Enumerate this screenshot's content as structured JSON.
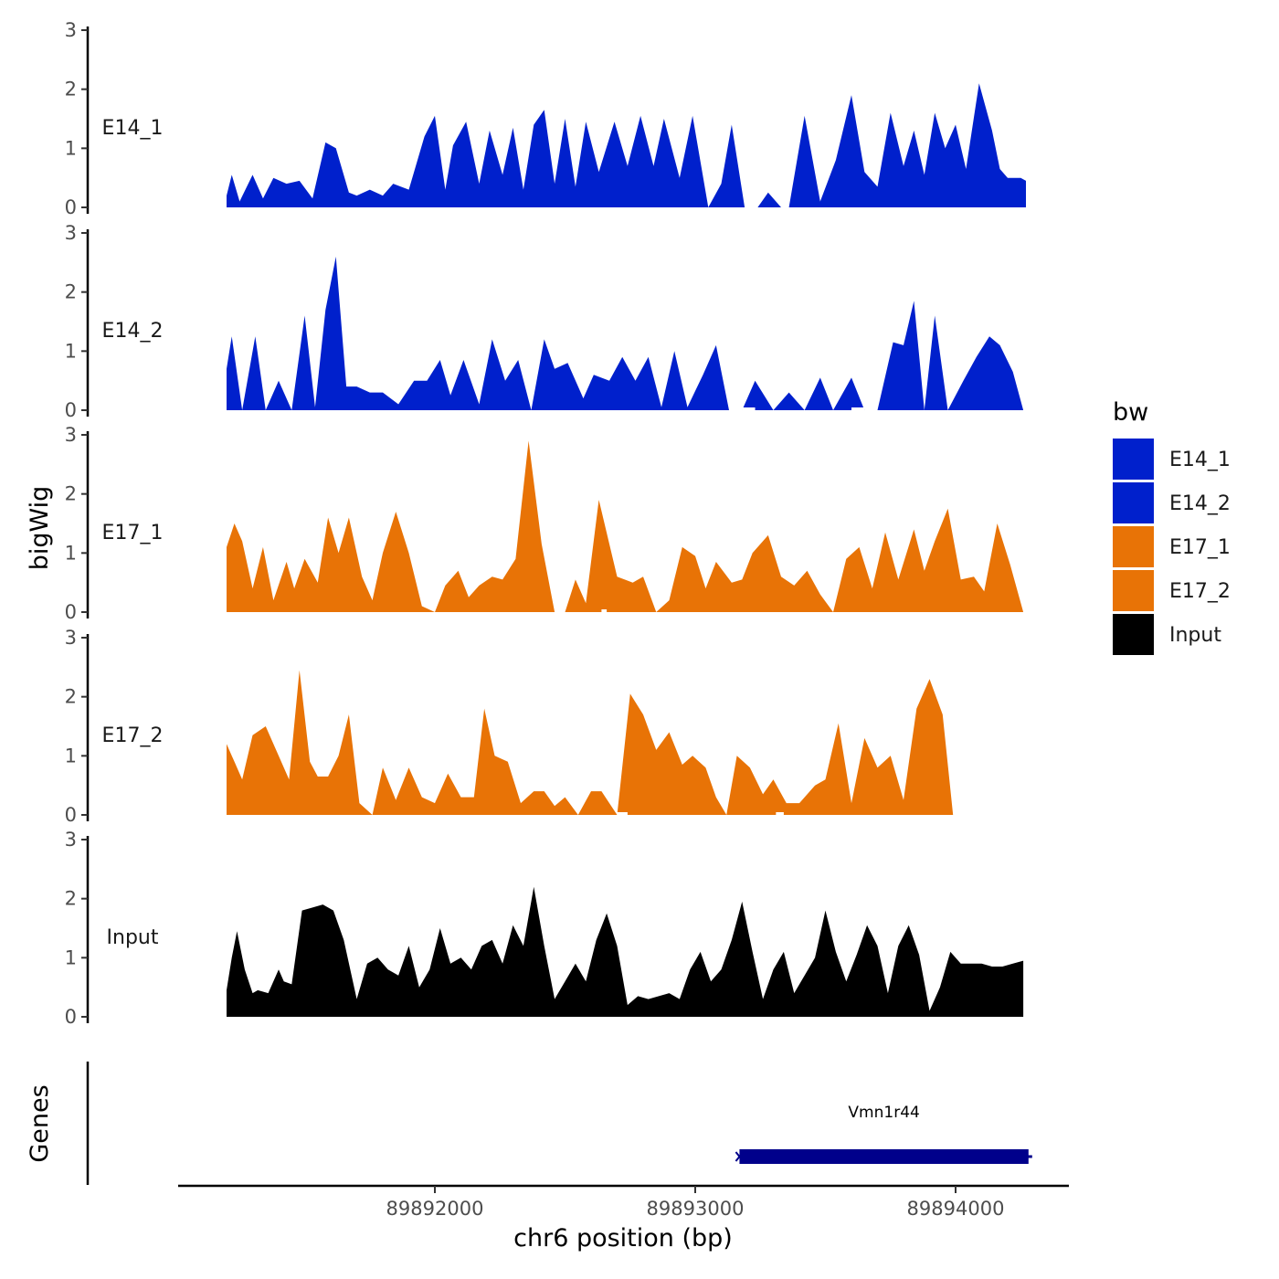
{
  "chart_data": {
    "type": "area",
    "xlabel": "chr6 position (bp)",
    "ylabel": "bigWig",
    "genes_label": "Genes",
    "xlim": [
      89891050,
      89894440
    ],
    "ylim": [
      0,
      3
    ],
    "x_ticks": [
      89892000,
      89893000,
      89894000
    ],
    "x_tick_labels": [
      "89892000",
      "89893000",
      "89894000"
    ],
    "y_ticks": [
      0,
      1,
      2,
      3
    ],
    "y_tick_labels": [
      "0",
      "1",
      "2",
      "3"
    ],
    "legend": {
      "title": "bw",
      "position": "right",
      "items": [
        {
          "label": "E14_1",
          "color": "#0020CC"
        },
        {
          "label": "E14_2",
          "color": "#0020CC"
        },
        {
          "label": "E17_1",
          "color": "#E87306"
        },
        {
          "label": "E17_2",
          "color": "#E87306"
        },
        {
          "label": "Input",
          "color": "#000000"
        }
      ]
    },
    "series": [
      {
        "name": "E14_1",
        "label": "E14_1",
        "color": "#0020CC",
        "x": [
          89891200,
          89891220,
          89891250,
          89891300,
          89891340,
          89891380,
          89891430,
          89891480,
          89891530,
          89891580,
          89891620,
          89891670,
          89891700,
          89891750,
          89891800,
          89891840,
          89891900,
          89891960,
          89892000,
          89892040,
          89892070,
          89892120,
          89892170,
          89892210,
          89892260,
          89892300,
          89892340,
          89892380,
          89892420,
          89892460,
          89892500,
          89892540,
          89892580,
          89892630,
          89892690,
          89892740,
          89892790,
          89892840,
          89892880,
          89892940,
          89892990,
          89893050,
          89893100,
          89893140,
          89893190,
          89893240,
          89893280,
          89893330,
          89893360,
          89893420,
          89893480,
          89893540,
          89893600,
          89893650,
          89893700,
          89893750,
          89893800,
          89893840,
          89893880,
          89893920,
          89893960,
          89894000,
          89894040,
          89894090,
          89894140,
          89894170,
          89894200,
          89894250,
          89894270
        ],
        "values": [
          0.2,
          0.55,
          0.1,
          0.55,
          0.15,
          0.5,
          0.4,
          0.45,
          0.15,
          1.1,
          1.0,
          0.25,
          0.2,
          0.3,
          0.2,
          0.4,
          0.3,
          1.2,
          1.55,
          0.3,
          1.05,
          1.45,
          0.4,
          1.3,
          0.55,
          1.35,
          0.3,
          1.4,
          1.65,
          0.4,
          1.5,
          0.35,
          1.45,
          0.6,
          1.45,
          0.7,
          1.55,
          0.7,
          1.5,
          0.5,
          1.55,
          0.0,
          0.4,
          1.4,
          0.0,
          0.0,
          0.25,
          0.0,
          0.0,
          1.55,
          0.1,
          0.8,
          1.9,
          0.6,
          0.35,
          1.6,
          0.7,
          1.3,
          0.55,
          1.6,
          1.0,
          1.4,
          0.65,
          2.1,
          1.3,
          0.65,
          0.5,
          0.5,
          0.45
        ]
      },
      {
        "name": "E14_2",
        "label": "E14_2",
        "color": "#0020CC",
        "x": [
          89891200,
          89891220,
          89891260,
          89891310,
          89891350,
          89891400,
          89891450,
          89891500,
          89891540,
          89891580,
          89891620,
          89891660,
          89891700,
          89891750,
          89891800,
          89891860,
          89891920,
          89891970,
          89892020,
          89892060,
          89892110,
          89892170,
          89892220,
          89892270,
          89892320,
          89892370,
          89892420,
          89892460,
          89892510,
          89892570,
          89892610,
          89892670,
          89892720,
          89892770,
          89892820,
          89892870,
          89892920,
          89892970,
          89893030,
          89893080,
          89893130,
          89893180,
          89893230,
          89893300,
          89893360,
          89893420,
          89893480,
          89893530,
          89893600,
          89893650,
          89893700,
          89893760,
          89893800,
          89893840,
          89893880,
          89893920,
          89893970,
          89894030,
          89894080,
          89894130,
          89894170,
          89894220,
          89894260
        ],
        "values": [
          0.7,
          1.25,
          0.0,
          1.25,
          0.0,
          0.5,
          0.0,
          1.6,
          0.05,
          1.7,
          2.6,
          0.4,
          0.4,
          0.3,
          0.3,
          0.1,
          0.5,
          0.5,
          0.85,
          0.25,
          0.85,
          0.1,
          1.2,
          0.5,
          0.85,
          0.0,
          1.2,
          0.7,
          0.8,
          0.2,
          0.6,
          0.5,
          0.9,
          0.5,
          0.9,
          0.05,
          1.0,
          0.05,
          0.6,
          1.1,
          0.0,
          0.0,
          0.5,
          0.0,
          0.3,
          0.0,
          0.55,
          0.0,
          0.55,
          0.0,
          0.0,
          1.15,
          1.1,
          1.85,
          0.0,
          1.6,
          0.0,
          0.5,
          0.9,
          1.25,
          1.1,
          0.65,
          0.0
        ],
        "gaps": [
          [
            89893180,
            89893230
          ],
          [
            89893600,
            89893650
          ]
        ]
      },
      {
        "name": "E17_1",
        "label": "E17_1",
        "color": "#E87306",
        "x": [
          89891200,
          89891230,
          89891260,
          89891300,
          89891340,
          89891380,
          89891430,
          89891460,
          89891500,
          89891550,
          89891590,
          89891630,
          89891670,
          89891720,
          89891760,
          89891800,
          89891850,
          89891900,
          89891950,
          89892000,
          89892040,
          89892090,
          89892130,
          89892170,
          89892220,
          89892260,
          89892310,
          89892360,
          89892410,
          89892460,
          89892500,
          89892540,
          89892580,
          89892630,
          89892700,
          89892760,
          89892800,
          89892850,
          89892900,
          89892950,
          89893000,
          89893040,
          89893080,
          89893140,
          89893180,
          89893220,
          89893280,
          89893330,
          89893380,
          89893430,
          89893480,
          89893530,
          89893580,
          89893630,
          89893680,
          89893730,
          89893780,
          89893840,
          89893880,
          89893920,
          89893970,
          89894020,
          89894070,
          89894110,
          89894160,
          89894210,
          89894260
        ],
        "values": [
          1.1,
          1.5,
          1.2,
          0.4,
          1.1,
          0.2,
          0.85,
          0.4,
          0.9,
          0.5,
          1.6,
          1.0,
          1.6,
          0.6,
          0.2,
          1.0,
          1.7,
          1.0,
          0.1,
          0.0,
          0.45,
          0.7,
          0.25,
          0.45,
          0.6,
          0.55,
          0.9,
          2.9,
          1.15,
          0.0,
          0.0,
          0.55,
          0.15,
          1.9,
          0.6,
          0.5,
          0.6,
          0.0,
          0.2,
          1.1,
          0.95,
          0.4,
          0.85,
          0.5,
          0.55,
          1.0,
          1.3,
          0.6,
          0.45,
          0.7,
          0.3,
          0.0,
          0.9,
          1.1,
          0.4,
          1.35,
          0.55,
          1.4,
          0.7,
          1.2,
          1.75,
          0.55,
          0.6,
          0.35,
          1.5,
          0.8,
          0.0
        ],
        "gaps": [
          [
            89892640,
            89892660
          ]
        ]
      },
      {
        "name": "E17_2",
        "label": "E17_2",
        "color": "#E87306",
        "x": [
          89891200,
          89891230,
          89891260,
          89891300,
          89891350,
          89891400,
          89891440,
          89891480,
          89891520,
          89891550,
          89891590,
          89891630,
          89891670,
          89891710,
          89891760,
          89891800,
          89891850,
          89891900,
          89891950,
          89892000,
          89892050,
          89892100,
          89892150,
          89892190,
          89892230,
          89892280,
          89892330,
          89892380,
          89892420,
          89892460,
          89892500,
          89892550,
          89892600,
          89892640,
          89892700,
          89892750,
          89892800,
          89892850,
          89892900,
          89892950,
          89892990,
          89893040,
          89893080,
          89893120,
          89893160,
          89893210,
          89893260,
          89893300,
          89893350,
          89893400,
          89893460,
          89893500,
          89893550,
          89893600,
          89893650,
          89893700,
          89893750,
          89893800,
          89893850,
          89893900,
          89893950,
          89893990,
          89894030,
          89894070,
          89894110,
          89894140,
          89894200
        ],
        "values": [
          1.2,
          0.9,
          0.6,
          1.35,
          1.5,
          1.0,
          0.6,
          2.45,
          0.9,
          0.65,
          0.65,
          1.0,
          1.7,
          0.2,
          0.0,
          0.8,
          0.25,
          0.8,
          0.3,
          0.2,
          0.7,
          0.3,
          0.3,
          1.8,
          1.0,
          0.9,
          0.2,
          0.4,
          0.4,
          0.15,
          0.3,
          0.0,
          0.4,
          0.4,
          0.0,
          2.05,
          1.7,
          1.1,
          1.4,
          0.85,
          1.0,
          0.8,
          0.3,
          0.0,
          1.0,
          0.8,
          0.35,
          0.6,
          0.2,
          0.2,
          0.5,
          0.6,
          1.55,
          0.2,
          1.3,
          0.8,
          1.0,
          0.25,
          1.8,
          2.3,
          1.7,
          0.0,
          0.0,
          0.0,
          0.0,
          0.0,
          0.0
        ],
        "gaps": [
          [
            89892700,
            89892740
          ],
          [
            89893310,
            89893340
          ]
        ]
      },
      {
        "name": "Input",
        "label": "Input",
        "color": "#000000",
        "x": [
          89891200,
          89891220,
          89891240,
          89891270,
          89891300,
          89891320,
          89891360,
          89891400,
          89891420,
          89891450,
          89891490,
          89891530,
          89891570,
          89891610,
          89891650,
          89891700,
          89891740,
          89891780,
          89891820,
          89891860,
          89891900,
          89891940,
          89891980,
          89892020,
          89892060,
          89892100,
          89892140,
          89892180,
          89892220,
          89892260,
          89892300,
          89892340,
          89892380,
          89892420,
          89892460,
          89892500,
          89892540,
          89892580,
          89892620,
          89892660,
          89892700,
          89892740,
          89892780,
          89892820,
          89892860,
          89892900,
          89892940,
          89892980,
          89893020,
          89893060,
          89893100,
          89893140,
          89893180,
          89893220,
          89893260,
          89893300,
          89893340,
          89893380,
          89893420,
          89893460,
          89893500,
          89893540,
          89893580,
          89893620,
          89893660,
          89893700,
          89893740,
          89893780,
          89893820,
          89893860,
          89893900,
          89893940,
          89893980,
          89894020,
          89894060,
          89894100,
          89894140,
          89894180,
          89894220,
          89894260
        ],
        "values": [
          0.45,
          1.0,
          1.45,
          0.8,
          0.4,
          0.45,
          0.4,
          0.8,
          0.6,
          0.55,
          1.8,
          1.85,
          1.9,
          1.8,
          1.3,
          0.3,
          0.9,
          1.0,
          0.8,
          0.7,
          1.2,
          0.5,
          0.8,
          1.5,
          0.9,
          1.0,
          0.8,
          1.2,
          1.3,
          0.9,
          1.55,
          1.2,
          2.2,
          1.2,
          0.3,
          0.6,
          0.9,
          0.6,
          1.3,
          1.75,
          1.2,
          0.2,
          0.35,
          0.3,
          0.35,
          0.4,
          0.3,
          0.8,
          1.1,
          0.6,
          0.8,
          1.3,
          1.95,
          1.1,
          0.3,
          0.8,
          1.1,
          0.4,
          0.7,
          1.0,
          1.8,
          1.1,
          0.6,
          1.05,
          1.55,
          1.2,
          0.4,
          1.2,
          1.55,
          1.05,
          0.1,
          0.5,
          1.1,
          0.9,
          0.9,
          0.9,
          0.85,
          0.85,
          0.9,
          0.95
        ]
      }
    ],
    "genes": [
      {
        "name": "Vmn1r44",
        "start": 89893170,
        "end": 89894280,
        "strand": "-",
        "color": "#00008B"
      }
    ]
  }
}
